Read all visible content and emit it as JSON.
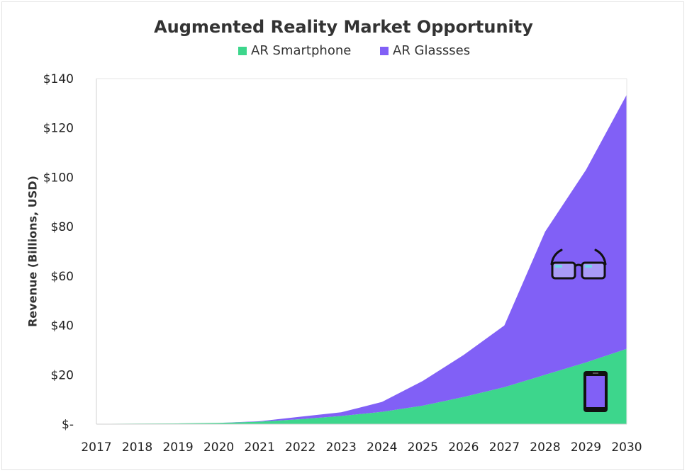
{
  "chart_data": {
    "type": "area",
    "stacked": true,
    "title": "Augmented Reality Market Opportunity",
    "ylabel": "Revenue (Billions, USD)",
    "xlabel": "",
    "x": [
      "2017",
      "2018",
      "2019",
      "2020",
      "2021",
      "2022",
      "2023",
      "2024",
      "2025",
      "2026",
      "2027",
      "2028",
      "2029",
      "2030"
    ],
    "ylim": [
      0,
      140
    ],
    "yticks": [
      0,
      20,
      40,
      60,
      80,
      100,
      120,
      140
    ],
    "ytick_labels": [
      "$-",
      "$20",
      "$40",
      "$60",
      "$80",
      "$100",
      "$120",
      "$140"
    ],
    "series": [
      {
        "name": "AR Smartphone",
        "color": "#3dd68c",
        "values": [
          0.1,
          0.2,
          0.3,
          0.5,
          1.0,
          2.0,
          3.3,
          5.0,
          7.5,
          11.0,
          15.0,
          20.0,
          25.0,
          30.5
        ]
      },
      {
        "name": "AR Glassses",
        "color": "#8160f6",
        "values": [
          0,
          0,
          0,
          0,
          0.2,
          1.0,
          1.5,
          4.0,
          10.0,
          17.0,
          25.0,
          58.0,
          78.0,
          103.0
        ]
      }
    ],
    "legend_position": "top",
    "grid": false,
    "annotations": [
      {
        "icon": "glasses-icon",
        "series": "AR Glassses"
      },
      {
        "icon": "smartphone-icon",
        "series": "AR Smartphone"
      }
    ]
  }
}
